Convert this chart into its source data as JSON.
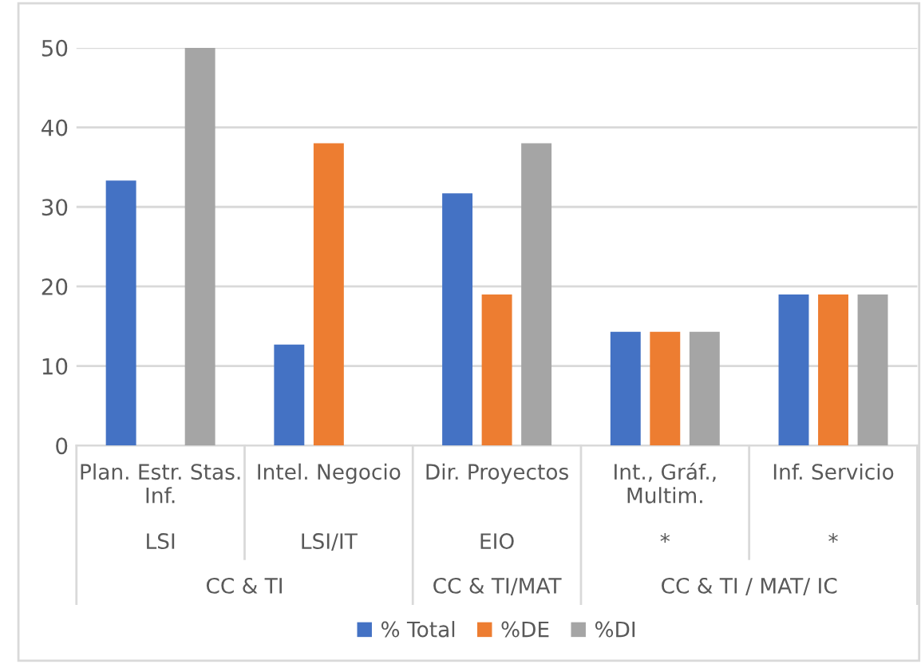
{
  "chart_data": {
    "type": "bar",
    "categories": [
      "Plan. Estr. Stas.\nInf.",
      "Intel. Negocio",
      "Dir. Proyectos",
      "Int., Gráf.,\nMultim.",
      "Inf. Servicio"
    ],
    "series": [
      {
        "name": "% Total",
        "color": "#4472c4",
        "values": [
          33.3,
          12.7,
          31.7,
          14.3,
          19
        ]
      },
      {
        "name": "%DE",
        "color": "#ed7d31",
        "values": [
          null,
          38,
          19,
          14.3,
          19
        ]
      },
      {
        "name": "%DI",
        "color": "#a5a5a5",
        "values": [
          50,
          null,
          38,
          14.3,
          19
        ]
      }
    ],
    "annotations": [
      "LSI",
      "LSI/IT",
      "EIO",
      "*",
      "*",
      "CC & TI",
      "CC & TI/MAT",
      "CC & TI / MAT/ IC"
    ],
    "ylim": [
      0,
      50
    ],
    "yticks": [
      0,
      10,
      20,
      30,
      40,
      50
    ],
    "grid": "y",
    "legend": "bottom"
  }
}
